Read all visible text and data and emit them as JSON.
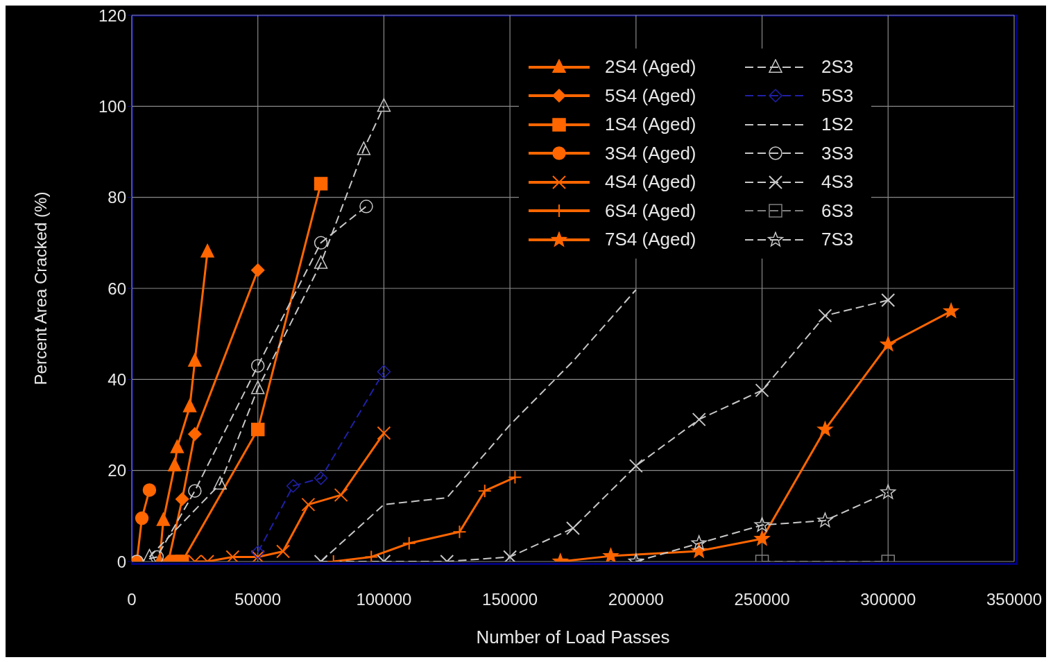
{
  "chart_data": {
    "type": "line",
    "xlabel": "Number of Load Passes",
    "ylabel": "Percent Area Cracked (%)",
    "xlim": [
      0,
      350000
    ],
    "xticks": [
      0,
      50000,
      100000,
      150000,
      200000,
      250000,
      300000,
      350000
    ],
    "ylim": [
      0,
      120
    ],
    "yticks": [
      0,
      20,
      40,
      60,
      80,
      100,
      120
    ],
    "grid": true,
    "legend": "top right",
    "series": [
      {
        "name": "2S4 (Aged)",
        "color": "#ff6600",
        "marker": "triangle",
        "line_style": "solid",
        "x": [
          11000,
          12500,
          17000,
          18000,
          23000,
          25000,
          30000
        ],
        "values": [
          0,
          9,
          21,
          25,
          34,
          44,
          68
        ]
      },
      {
        "name": "5S4 (Aged)",
        "color": "#ff6600",
        "marker": "diamond",
        "line_style": "solid",
        "x": [
          14500,
          20000,
          25000,
          50000
        ],
        "values": [
          0,
          13.7,
          28,
          64
        ]
      },
      {
        "name": "1S4 (Aged)",
        "color": "#ff6600",
        "marker": "square",
        "line_style": "solid",
        "x": [
          18000,
          20000,
          50000,
          75000
        ],
        "values": [
          0,
          0,
          29,
          83
        ]
      },
      {
        "name": "3S4 (Aged)",
        "color": "#ff6600",
        "marker": "circle",
        "line_style": "solid",
        "x": [
          2000,
          4000,
          7000
        ],
        "values": [
          0,
          9.5,
          15.7
        ]
      },
      {
        "name": "4S4 (Aged)",
        "color": "#ff6600",
        "marker": "cross",
        "line_style": "solid",
        "x": [
          25000,
          30000,
          40000,
          50000,
          60000,
          70000,
          83000,
          100000
        ],
        "values": [
          0,
          0,
          1,
          1,
          2.2,
          12.5,
          14.6,
          28.2
        ]
      },
      {
        "name": "6S4 (Aged)",
        "color": "#ff6600",
        "marker": "plus",
        "line_style": "solid",
        "x": [
          80000,
          95000,
          110000,
          130000,
          140000,
          152000
        ],
        "values": [
          0,
          1,
          4,
          6.5,
          15.5,
          18.5
        ]
      },
      {
        "name": "7S4 (Aged)",
        "color": "#ff6600",
        "marker": "star",
        "line_style": "solid",
        "x": [
          170000,
          190000,
          225000,
          250000,
          275000,
          300000,
          325000
        ],
        "values": [
          0,
          1.2,
          2.3,
          5,
          29,
          47.7,
          55
        ]
      },
      {
        "name": "2S3",
        "color": "#c8c8c8",
        "marker": "triangle",
        "line_style": "dashed",
        "x": [
          7000,
          35000,
          50000,
          75000,
          92000,
          100000
        ],
        "values": [
          1,
          17,
          38,
          65.5,
          90.5,
          100
        ]
      },
      {
        "name": "5S3",
        "color": "#2020a8",
        "marker": "diamond",
        "line_style": "dashed",
        "x": [
          50000,
          64000,
          75000,
          100000
        ],
        "values": [
          2,
          16.6,
          18.3,
          41.7
        ]
      },
      {
        "name": "1S2",
        "color": "#c8c8c8",
        "marker": "none",
        "line_style": "dashed",
        "x": [
          75000,
          100000,
          125000,
          150000,
          175000,
          200000
        ],
        "values": [
          0,
          12.5,
          14,
          30,
          44,
          59.7
        ]
      },
      {
        "name": "3S3",
        "color": "#c8c8c8",
        "marker": "circle",
        "line_style": "dashed",
        "x": [
          2000,
          10000,
          25000,
          50000,
          75000,
          93000
        ],
        "values": [
          0,
          1,
          15.5,
          43,
          70,
          78
        ]
      },
      {
        "name": "4S3",
        "color": "#c8c8c8",
        "marker": "cross",
        "line_style": "dashed",
        "x": [
          75000,
          100000,
          125000,
          150000,
          175000,
          200000,
          225000,
          250000,
          275000,
          300000
        ],
        "values": [
          0,
          0,
          0,
          1,
          7.3,
          21,
          31.2,
          37.6,
          54,
          57.4
        ]
      },
      {
        "name": "6S3",
        "color": "#808080",
        "marker": "square",
        "line_style": "dashed",
        "x": [
          250000,
          300000
        ],
        "values": [
          0,
          0
        ]
      },
      {
        "name": "7S3",
        "color": "#c8c8c8",
        "marker": "star",
        "line_style": "dashed",
        "x": [
          200000,
          225000,
          250000,
          275000,
          300000
        ],
        "values": [
          0,
          4,
          8,
          9,
          15.2
        ]
      }
    ]
  }
}
